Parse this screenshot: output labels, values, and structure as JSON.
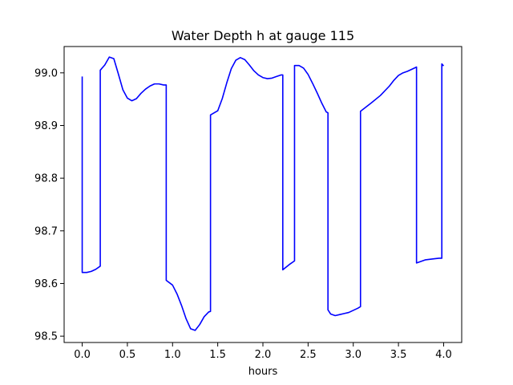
{
  "chart_data": {
    "type": "line",
    "title": "Water Depth h at gauge 115",
    "xlabel": "hours",
    "ylabel": "",
    "xlim": [
      -0.2,
      4.2
    ],
    "ylim": [
      98.488,
      99.05
    ],
    "xticks": [
      0.0,
      0.5,
      1.0,
      1.5,
      2.0,
      2.5,
      3.0,
      3.5,
      4.0
    ],
    "xtick_labels": [
      "0.0",
      "0.5",
      "1.0",
      "1.5",
      "2.0",
      "2.5",
      "3.0",
      "3.5",
      "4.0"
    ],
    "yticks": [
      98.5,
      98.6,
      98.7,
      98.8,
      98.9,
      99.0
    ],
    "ytick_labels": [
      "98.5",
      "98.6",
      "98.7",
      "98.8",
      "98.9",
      "99.0"
    ],
    "grid": false,
    "legend": "none",
    "series": [
      {
        "color": "#0000ff",
        "x": [
          0.0,
          0.0,
          0.05,
          0.1,
          0.15,
          0.2,
          0.2,
          0.25,
          0.3,
          0.35,
          0.4,
          0.45,
          0.5,
          0.55,
          0.6,
          0.65,
          0.7,
          0.75,
          0.8,
          0.85,
          0.9,
          0.93,
          0.93,
          1.0,
          1.05,
          1.1,
          1.15,
          1.2,
          1.25,
          1.3,
          1.35,
          1.4,
          1.42,
          1.42,
          1.5,
          1.55,
          1.6,
          1.65,
          1.7,
          1.75,
          1.8,
          1.85,
          1.9,
          1.95,
          2.0,
          2.05,
          2.1,
          2.15,
          2.2,
          2.22,
          2.22,
          2.3,
          2.35,
          2.35,
          2.4,
          2.45,
          2.5,
          2.55,
          2.6,
          2.65,
          2.7,
          2.72,
          2.72,
          2.75,
          2.8,
          2.85,
          2.9,
          2.95,
          3.0,
          3.05,
          3.08,
          3.08,
          3.2,
          3.3,
          3.4,
          3.45,
          3.5,
          3.55,
          3.6,
          3.65,
          3.7,
          3.7,
          3.8,
          3.9,
          3.95,
          3.98,
          3.98,
          4.0
        ],
        "y": [
          98.993,
          98.621,
          98.621,
          98.623,
          98.627,
          98.633,
          99.005,
          99.015,
          99.03,
          99.027,
          98.998,
          98.968,
          98.952,
          98.947,
          98.951,
          98.961,
          98.969,
          98.975,
          98.979,
          98.979,
          98.977,
          98.977,
          98.606,
          98.597,
          98.58,
          98.558,
          98.533,
          98.514,
          98.511,
          98.522,
          98.537,
          98.546,
          98.547,
          98.92,
          98.928,
          98.951,
          98.981,
          99.008,
          99.024,
          99.029,
          99.025,
          99.015,
          99.004,
          98.996,
          98.991,
          98.989,
          98.99,
          98.993,
          98.996,
          98.996,
          98.626,
          98.637,
          98.643,
          99.014,
          99.014,
          99.009,
          98.997,
          98.98,
          98.962,
          98.943,
          98.926,
          98.924,
          98.55,
          98.542,
          98.539,
          98.541,
          98.543,
          98.545,
          98.549,
          98.553,
          98.556,
          98.927,
          98.943,
          98.957,
          98.975,
          98.986,
          98.995,
          99.0,
          99.003,
          99.007,
          99.011,
          98.639,
          98.645,
          98.647,
          98.648,
          98.648,
          99.017,
          99.013
        ]
      }
    ]
  }
}
